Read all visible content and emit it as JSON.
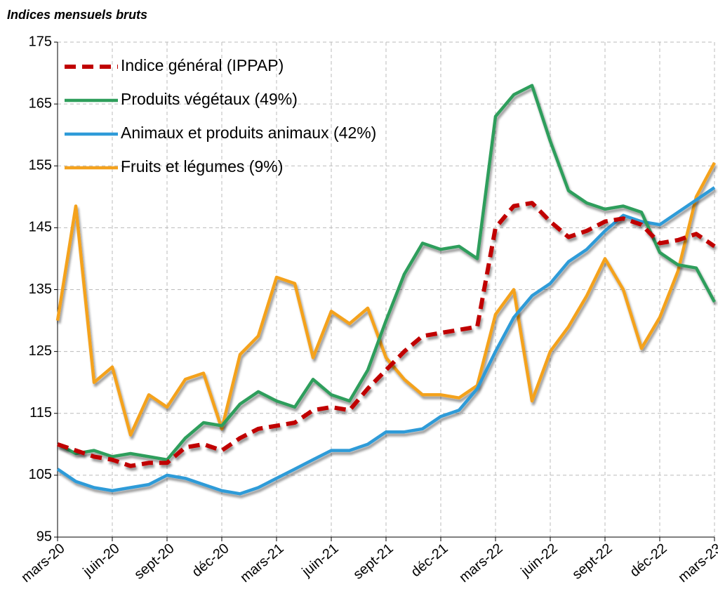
{
  "chart_data": {
    "type": "line",
    "title": "Indices mensuels bruts",
    "categories": [
      "mars-20",
      null,
      null,
      "juin-20",
      null,
      null,
      "sept-20",
      null,
      null,
      "déc-20",
      null,
      null,
      "mars-21",
      null,
      null,
      "juin-21",
      null,
      null,
      "sept-21",
      null,
      null,
      "déc-21",
      null,
      null,
      "mars-22",
      null,
      null,
      "juin-22",
      null,
      null,
      "sept-22",
      null,
      null,
      "déc-22",
      null,
      null,
      "mars-23"
    ],
    "series": [
      {
        "name": "Indice général (IPPAP)",
        "color": "#c00000",
        "dashed": true,
        "values": [
          110,
          109,
          108,
          107.5,
          106.5,
          107,
          107,
          109.5,
          110,
          109,
          111,
          112.5,
          113,
          113.5,
          115.5,
          116,
          115.5,
          119,
          122,
          125,
          127.5,
          128,
          128.5,
          129,
          145,
          148.5,
          149,
          146,
          143.5,
          144.5,
          146,
          146.5,
          145.5,
          142.5,
          143,
          144,
          142
        ]
      },
      {
        "name": "Produits végétaux (49%)",
        "color": "#2e9e5b",
        "values": [
          110,
          108.5,
          109,
          108,
          108.5,
          108,
          107.5,
          111,
          113.5,
          113,
          116.5,
          118.5,
          117,
          116,
          120.5,
          118,
          117,
          122,
          130,
          137.5,
          142.5,
          141.5,
          142,
          140,
          163,
          166.5,
          168,
          159,
          151,
          149,
          148,
          148.5,
          147.5,
          141,
          139,
          138.5,
          133
        ]
      },
      {
        "name": "Animaux et produits animaux (42%)",
        "color": "#2e9bd8",
        "values": [
          106,
          104,
          103,
          102.5,
          103,
          103.5,
          105,
          104.5,
          103.5,
          102.5,
          102,
          103,
          104.5,
          106,
          107.5,
          109,
          109,
          110,
          112,
          112,
          112.5,
          114.5,
          115.5,
          119,
          125,
          130.5,
          134,
          136,
          139.5,
          141.5,
          144.5,
          147,
          146,
          145.5,
          147.5,
          149.5,
          151.5
        ]
      },
      {
        "name": "Fruits et légumes (9%)",
        "color": "#f4a21e",
        "values": [
          130,
          148.5,
          120,
          122.5,
          111.5,
          118,
          116,
          120.5,
          121.5,
          112.5,
          124.5,
          127.5,
          137,
          136,
          124,
          131.5,
          129.5,
          132,
          124,
          120.5,
          118,
          118,
          117.5,
          119.5,
          131,
          135,
          117,
          125,
          129,
          134,
          140,
          135,
          125.5,
          130.5,
          138,
          150,
          155.5
        ]
      }
    ],
    "ylim": [
      95,
      175
    ],
    "yticks": [
      95,
      105,
      115,
      125,
      135,
      145,
      155,
      165,
      175
    ],
    "grid": true,
    "legend": "upper left"
  }
}
